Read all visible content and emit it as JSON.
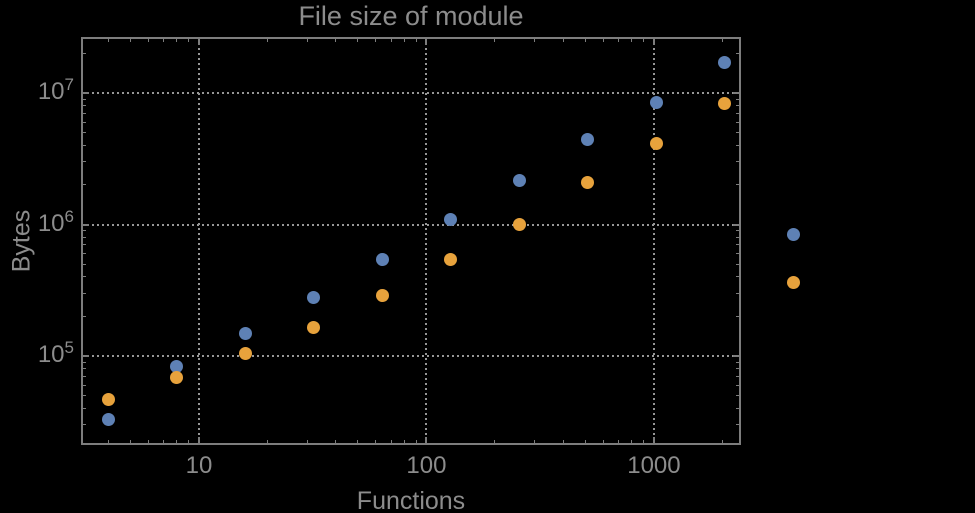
{
  "chart_data": {
    "type": "scatter",
    "title": "File size of module",
    "xlabel": "Functions",
    "ylabel": "Bytes",
    "xscale": "log",
    "yscale": "log",
    "xlim": [
      3.06,
      2390
    ],
    "ylim": [
      21500,
      26200000
    ],
    "legend": "none",
    "grid": {
      "style": "dotted",
      "x_values": [
        10,
        100,
        1000
      ],
      "y_values": [
        100000,
        1000000,
        10000000
      ]
    },
    "x_ticks": [
      {
        "value": 10,
        "label": "10"
      },
      {
        "value": 100,
        "label": "100"
      },
      {
        "value": 1000,
        "label": "1000"
      }
    ],
    "y_ticks": [
      {
        "value": 100000,
        "base": "10",
        "exp": "5"
      },
      {
        "value": 1000000,
        "base": "10",
        "exp": "6"
      },
      {
        "value": 10000000,
        "base": "10",
        "exp": "7"
      }
    ],
    "x": [
      4,
      8,
      16,
      32,
      64,
      128,
      256,
      512,
      1024,
      2048,
      4096
    ],
    "series": [
      {
        "name": "series-blue",
        "color": "#5E81B5",
        "values": [
          33000,
          84000,
          150000,
          280000,
          545000,
          1090000,
          2150000,
          4400000,
          8400000,
          17000000,
          840000
        ]
      },
      {
        "name": "series-orange",
        "color": "#E7A23C",
        "values": [
          47000,
          69000,
          104000,
          166000,
          290000,
          545000,
          1000000,
          2080000,
          4100000,
          8300000,
          365000
        ]
      }
    ]
  },
  "colors": {
    "background": "#000000",
    "frame": "#7d7d7d",
    "grid": "#979797",
    "text": "#8c8c8c"
  }
}
